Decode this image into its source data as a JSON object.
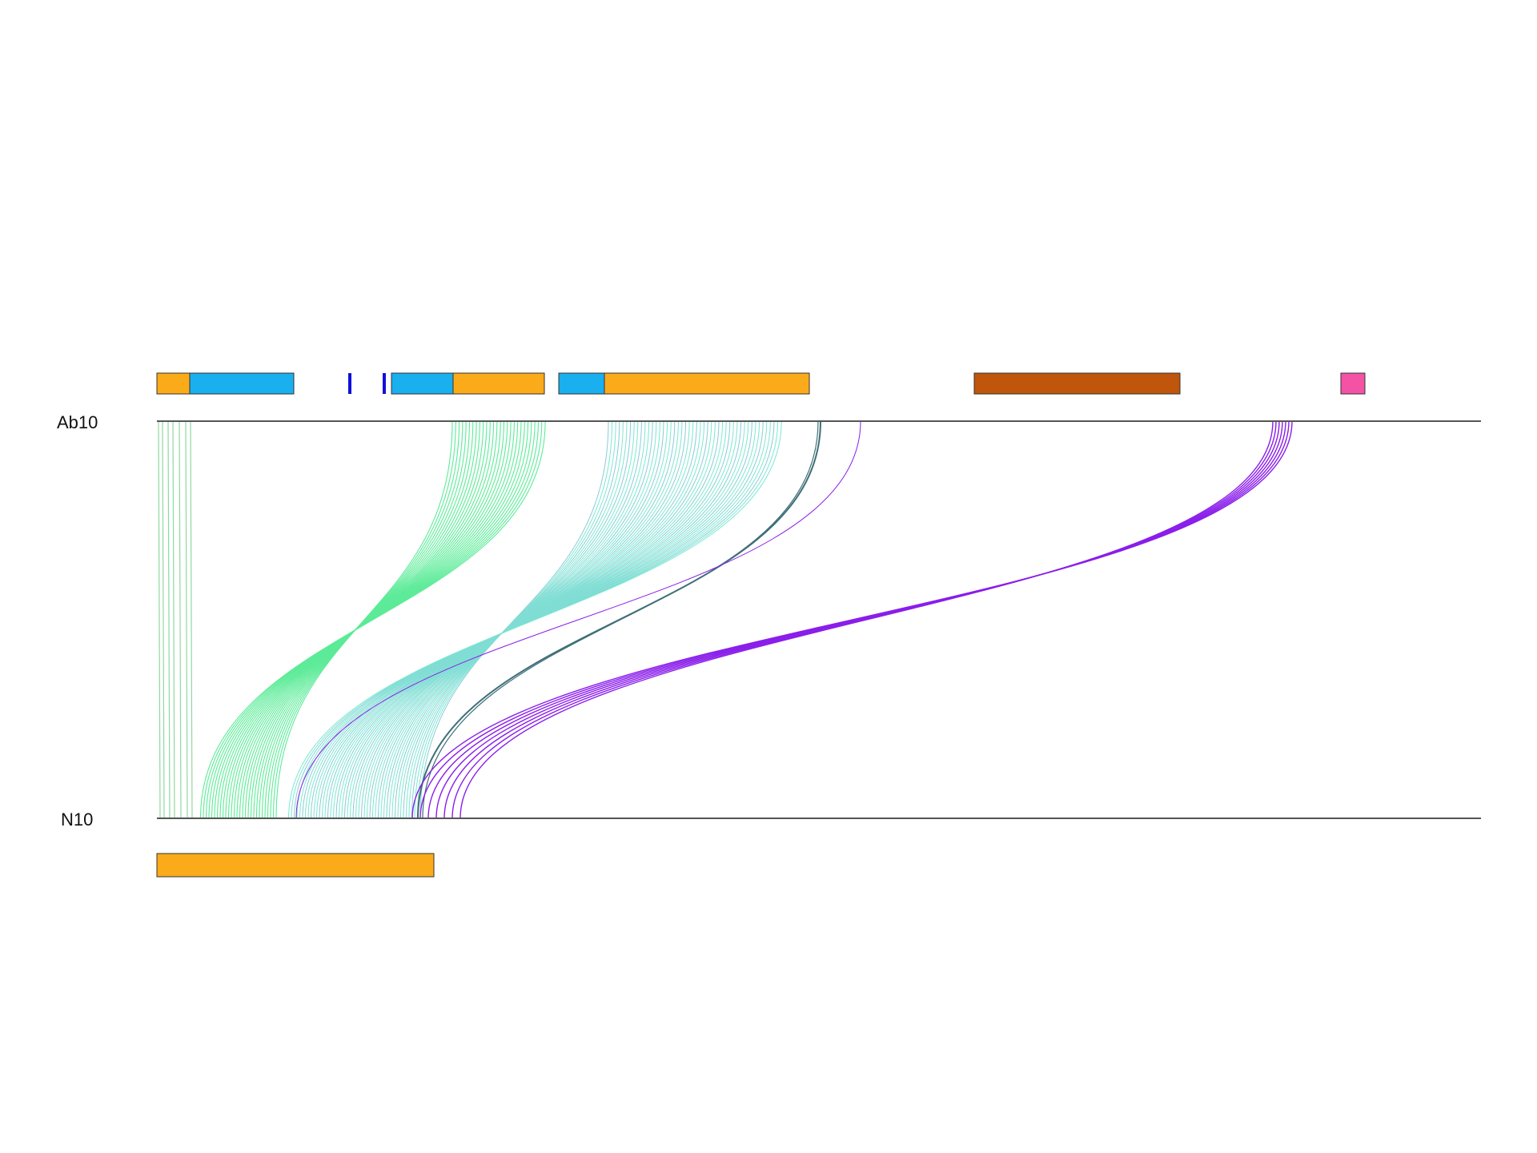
{
  "tracks": {
    "top": {
      "label": "Ab10"
    },
    "bottom": {
      "label": "N10"
    }
  },
  "colors": {
    "orange": "#FBAB19",
    "blue": "#1AAFEF",
    "dark_blue": "#1010DD",
    "brown": "#C0560B",
    "pink": "#F452A5",
    "green_links": "#5CEB98",
    "aqua_links": "#7AE8D0",
    "slate_links": "#3F6F78",
    "purple_links": "#8A1EEA"
  },
  "annotations": {
    "top": [
      {
        "color": "orange"
      },
      {
        "color": "blue"
      },
      {
        "color": "dark_blue"
      },
      {
        "color": "dark_blue"
      },
      {
        "color": "blue"
      },
      {
        "color": "orange"
      },
      {
        "color": "blue"
      },
      {
        "color": "orange"
      },
      {
        "color": "brown"
      },
      {
        "color": "pink"
      }
    ],
    "bottom": [
      {
        "color": "orange"
      }
    ]
  }
}
